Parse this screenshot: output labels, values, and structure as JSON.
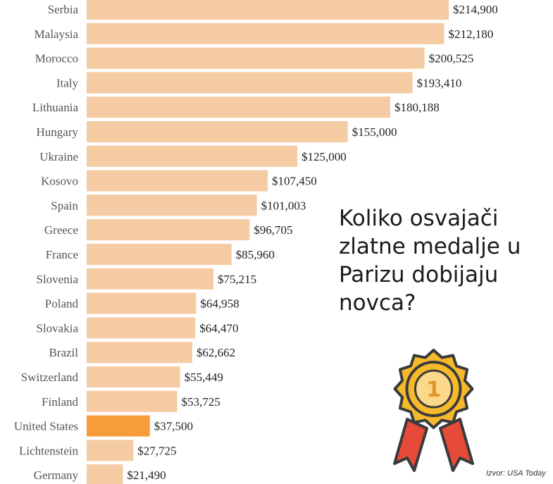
{
  "chart_data": {
    "type": "bar",
    "orientation": "horizontal",
    "categories": [
      "Serbia",
      "Malaysia",
      "Morocco",
      "Italy",
      "Lithuania",
      "Hungary",
      "Ukraine",
      "Kosovo",
      "Spain",
      "Greece",
      "France",
      "Slovenia",
      "Poland",
      "Slovakia",
      "Brazil",
      "Switzerland",
      "Finland",
      "United States",
      "Lichtenstein",
      "Germany"
    ],
    "values": [
      214900,
      212180,
      200525,
      193410,
      180188,
      155000,
      125000,
      107450,
      101003,
      96705,
      85960,
      75215,
      64958,
      64470,
      62662,
      55449,
      53725,
      37500,
      27725,
      21490
    ],
    "value_labels": [
      "$214,900",
      "$212,180",
      "$200,525",
      "$193,410",
      "$180,188",
      "$155,000",
      "$125,000",
      "$107,450",
      "$101,003",
      "$96,705",
      "$85,960",
      "$75,215",
      "$64,958",
      "$64,470",
      "$62,662",
      "$55,449",
      "$53,725",
      "$37,500",
      "$27,725",
      "$21,490"
    ],
    "highlight_category": "United States",
    "colors": {
      "bar": "#f5cba3",
      "highlight": "#f79c3a"
    }
  },
  "question": {
    "lines": [
      "Koliko osvajači",
      "zlatne medalje u",
      "Parizu dobijaju",
      "novca?"
    ]
  },
  "medal": {
    "number": "1",
    "icon": "gold-medal-ribbon-icon"
  },
  "source": "Izvor: USA Today"
}
